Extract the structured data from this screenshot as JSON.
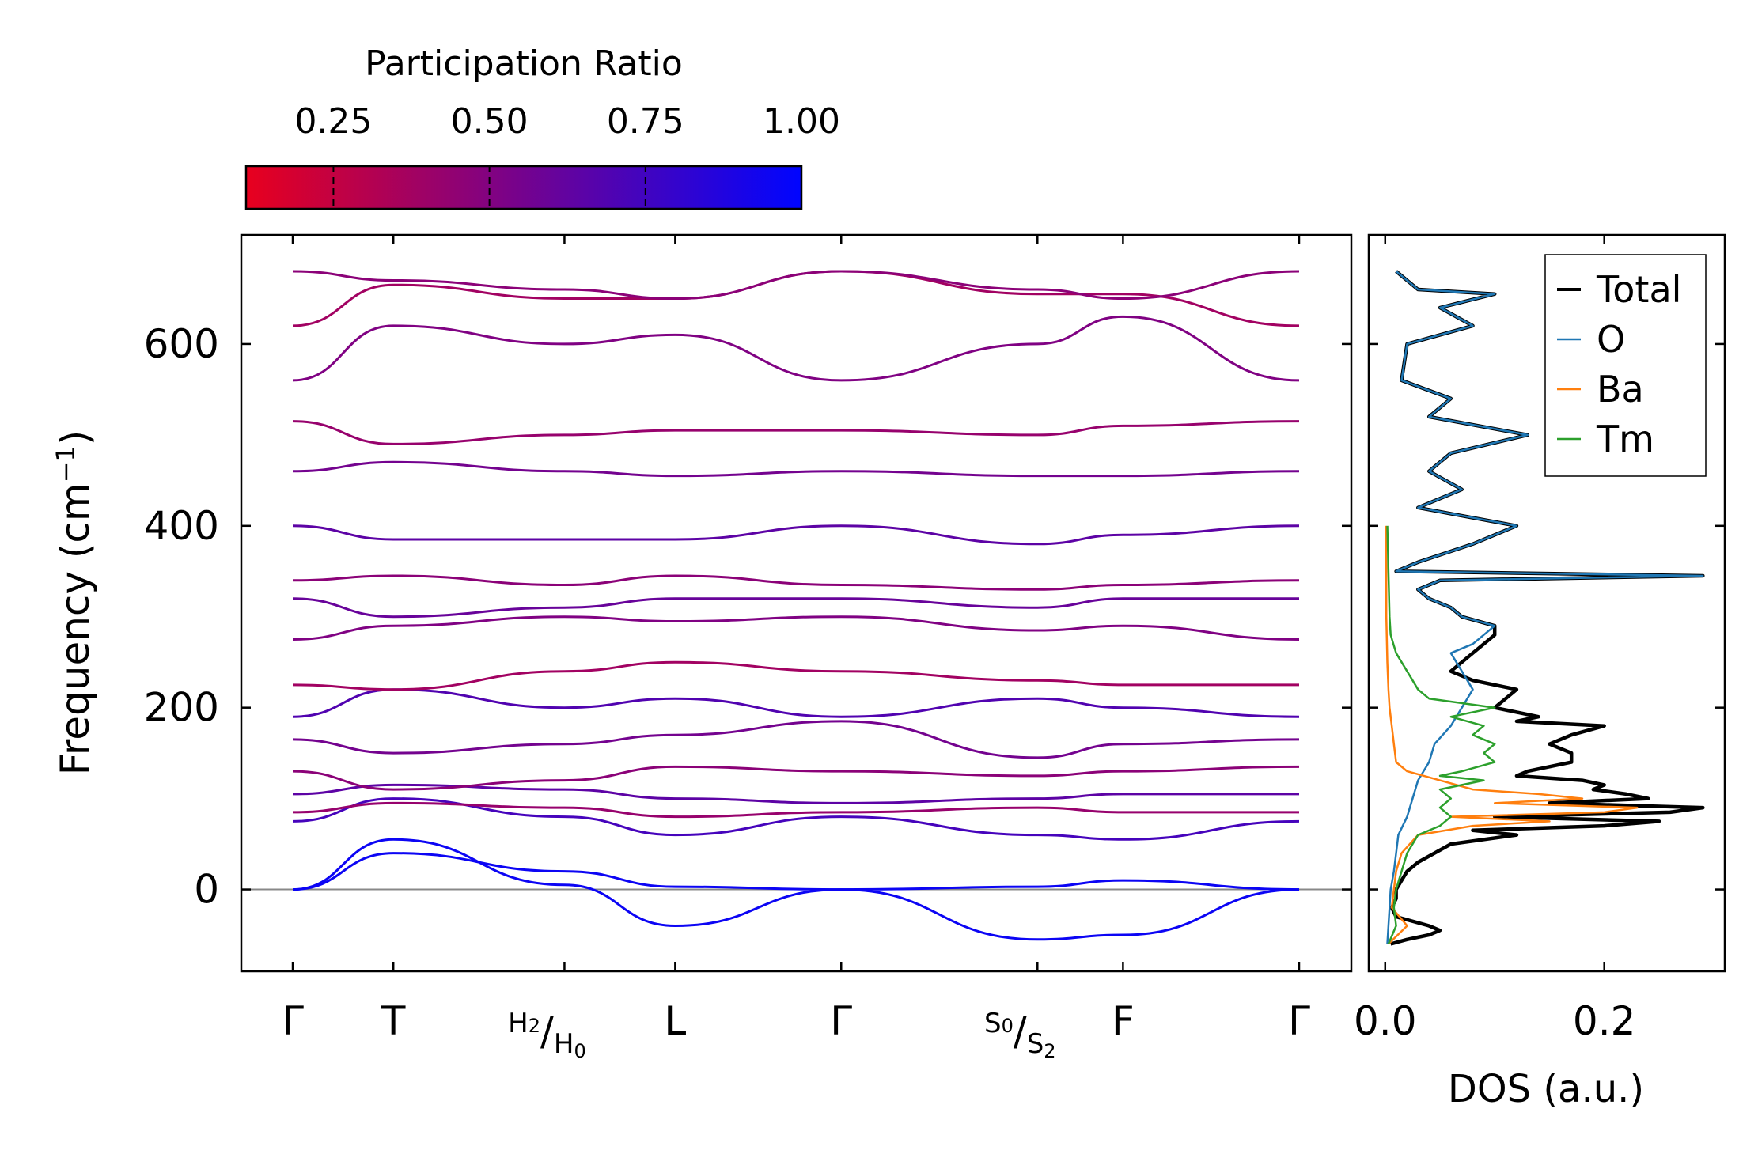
{
  "chart_data": [
    {
      "type": "line",
      "title": "",
      "xlabel": "",
      "ylabel": "Frequency (cm",
      "ylabel_sup": "−1",
      "ylabel_close": ")",
      "ylim": [
        -90,
        720
      ],
      "yticks": [
        0,
        200,
        400,
        600
      ],
      "path_ticks": [
        {
          "label": "Γ",
          "pos": 0.0
        },
        {
          "label": "T",
          "pos": 0.1
        },
        {
          "label": "H",
          "sub1": "2",
          "label2": "H",
          "sub2": "0",
          "pos": 0.27
        },
        {
          "label": "L",
          "pos": 0.38
        },
        {
          "label": "Γ",
          "pos": 0.545
        },
        {
          "label": "S",
          "sub1": "0",
          "label2": "S",
          "sub2": "2",
          "pos": 0.74
        },
        {
          "label": "F",
          "pos": 0.825
        },
        {
          "label": "Γ",
          "pos": 1.0
        }
      ],
      "band_samples_at_path_points": [
        [
          0,
          40,
          20,
          3,
          0,
          3,
          10,
          0
        ],
        [
          0,
          55,
          5,
          -40,
          0,
          -55,
          -50,
          0
        ],
        [
          75,
          100,
          80,
          60,
          80,
          60,
          55,
          75
        ],
        [
          85,
          95,
          90,
          80,
          85,
          90,
          85,
          85
        ],
        [
          105,
          115,
          110,
          100,
          95,
          100,
          105,
          105
        ],
        [
          130,
          110,
          120,
          135,
          130,
          125,
          130,
          135
        ],
        [
          165,
          150,
          160,
          170,
          185,
          145,
          160,
          165
        ],
        [
          190,
          220,
          200,
          210,
          190,
          210,
          200,
          190
        ],
        [
          225,
          220,
          240,
          250,
          240,
          230,
          225,
          225
        ],
        [
          275,
          290,
          300,
          295,
          300,
          285,
          290,
          275
        ],
        [
          320,
          300,
          310,
          320,
          320,
          310,
          320,
          320
        ],
        [
          340,
          345,
          335,
          345,
          335,
          330,
          335,
          340
        ],
        [
          400,
          385,
          385,
          385,
          400,
          380,
          390,
          400
        ],
        [
          460,
          470,
          460,
          455,
          460,
          455,
          455,
          460
        ],
        [
          515,
          490,
          500,
          505,
          505,
          500,
          510,
          515
        ],
        [
          560,
          620,
          600,
          610,
          560,
          600,
          630,
          560
        ],
        [
          620,
          665,
          650,
          650,
          680,
          655,
          655,
          620
        ],
        [
          680,
          670,
          660,
          650,
          680,
          660,
          650,
          680
        ]
      ],
      "colorbar": {
        "label": "Participation Ratio",
        "ticks": [
          "0.25",
          "0.50",
          "0.75",
          "1.00"
        ],
        "tick_values": [
          0.25,
          0.5,
          0.75,
          1.0
        ],
        "range": [
          0.11,
          1.0
        ],
        "color_low": "#e8001e",
        "color_high": "#0005ff"
      }
    },
    {
      "type": "line",
      "title": "",
      "xlabel": "DOS (a.u.)",
      "ylabel": "",
      "xlim": [
        -0.015,
        0.31
      ],
      "xticks": [
        "0.0",
        "0.2"
      ],
      "xtick_values": [
        0.0,
        0.2
      ],
      "legend": {
        "position": "top-right",
        "entries": [
          {
            "label": "Total",
            "color": "#000000"
          },
          {
            "label": "O",
            "color": "#1f77b4"
          },
          {
            "label": "Ba",
            "color": "#ff7f0e"
          },
          {
            "label": "Tm",
            "color": "#2ca02c"
          }
        ]
      },
      "series": [
        {
          "name": "Total",
          "color": "#000000",
          "freq": [
            -60,
            -55,
            -50,
            -45,
            -40,
            -30,
            -20,
            -10,
            0,
            10,
            20,
            30,
            40,
            50,
            60,
            65,
            70,
            75,
            80,
            85,
            90,
            95,
            100,
            105,
            110,
            115,
            120,
            125,
            130,
            140,
            150,
            160,
            170,
            180,
            185,
            190,
            200,
            210,
            220,
            230,
            240,
            250,
            260,
            270,
            280,
            290,
            300,
            310,
            320,
            330,
            340,
            345,
            350,
            360,
            380,
            400,
            420,
            440,
            460,
            480,
            500,
            520,
            540,
            560,
            600,
            620,
            640,
            655,
            660,
            680
          ],
          "dos": [
            0.005,
            0.02,
            0.04,
            0.05,
            0.04,
            0.01,
            0.006,
            0.01,
            0.01,
            0.015,
            0.02,
            0.03,
            0.045,
            0.06,
            0.12,
            0.08,
            0.2,
            0.25,
            0.1,
            0.26,
            0.29,
            0.15,
            0.24,
            0.22,
            0.19,
            0.2,
            0.18,
            0.12,
            0.13,
            0.17,
            0.17,
            0.15,
            0.17,
            0.2,
            0.12,
            0.14,
            0.1,
            0.11,
            0.12,
            0.08,
            0.06,
            0.07,
            0.08,
            0.09,
            0.1,
            0.1,
            0.07,
            0.06,
            0.04,
            0.03,
            0.05,
            0.29,
            0.01,
            0.03,
            0.08,
            0.12,
            0.03,
            0.07,
            0.04,
            0.06,
            0.13,
            0.04,
            0.06,
            0.015,
            0.02,
            0.08,
            0.05,
            0.1,
            0.03,
            0.01
          ]
        },
        {
          "name": "O",
          "color": "#1f77b4",
          "freq": [
            -60,
            -40,
            -20,
            0,
            20,
            40,
            60,
            80,
            100,
            120,
            140,
            160,
            180,
            200,
            220,
            240,
            260,
            270,
            280,
            290,
            300,
            310,
            320,
            330,
            340,
            345,
            350,
            360,
            380,
            400,
            420,
            440,
            460,
            480,
            500,
            520,
            540,
            560,
            600,
            620,
            640,
            655,
            660,
            680
          ],
          "dos": [
            0.002,
            0.003,
            0.004,
            0.005,
            0.008,
            0.01,
            0.012,
            0.02,
            0.025,
            0.03,
            0.04,
            0.045,
            0.06,
            0.07,
            0.08,
            0.07,
            0.06,
            0.08,
            0.09,
            0.1,
            0.07,
            0.06,
            0.04,
            0.03,
            0.05,
            0.29,
            0.01,
            0.03,
            0.08,
            0.12,
            0.03,
            0.07,
            0.04,
            0.06,
            0.13,
            0.04,
            0.06,
            0.015,
            0.02,
            0.08,
            0.05,
            0.1,
            0.03,
            0.01
          ]
        },
        {
          "name": "Ba",
          "color": "#ff7f0e",
          "freq": [
            -60,
            -40,
            -20,
            0,
            20,
            40,
            60,
            70,
            75,
            80,
            85,
            90,
            95,
            100,
            105,
            110,
            120,
            130,
            140,
            160,
            180,
            200,
            220,
            250,
            300,
            350,
            400
          ],
          "dos": [
            0.003,
            0.02,
            0.006,
            0.008,
            0.01,
            0.015,
            0.03,
            0.08,
            0.15,
            0.06,
            0.2,
            0.23,
            0.1,
            0.18,
            0.14,
            0.08,
            0.05,
            0.02,
            0.01,
            0.008,
            0.006,
            0.004,
            0.003,
            0.002,
            0.001,
            0.001,
            0.0005
          ]
        },
        {
          "name": "Tm",
          "color": "#2ca02c",
          "freq": [
            -60,
            -40,
            -20,
            0,
            20,
            40,
            60,
            70,
            80,
            90,
            100,
            110,
            120,
            125,
            130,
            140,
            150,
            160,
            170,
            180,
            190,
            200,
            210,
            220,
            240,
            260,
            280,
            300,
            350,
            400
          ],
          "dos": [
            0.003,
            0.01,
            0.008,
            0.01,
            0.015,
            0.02,
            0.03,
            0.05,
            0.06,
            0.05,
            0.06,
            0.05,
            0.09,
            0.05,
            0.07,
            0.1,
            0.09,
            0.1,
            0.08,
            0.09,
            0.06,
            0.1,
            0.04,
            0.03,
            0.02,
            0.01,
            0.005,
            0.004,
            0.003,
            0.002
          ]
        }
      ]
    }
  ]
}
